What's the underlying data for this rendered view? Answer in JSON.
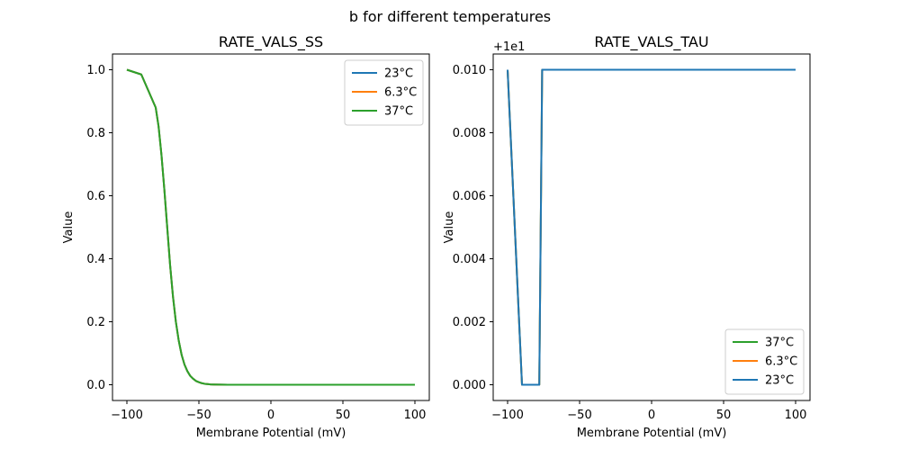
{
  "figure": {
    "suptitle": "b for different temperatures"
  },
  "colors": {
    "23°C": "#1f77b4",
    "6.3°C": "#ff7f0e",
    "37°C": "#2ca02c"
  },
  "chart_data": [
    {
      "type": "line",
      "title": "RATE_VALS_SS",
      "xlabel": "Membrane Potential (mV)",
      "ylabel": "Value",
      "xlim": [
        -110,
        110
      ],
      "ylim": [
        -0.05,
        1.05
      ],
      "xticks": [
        -100,
        -50,
        0,
        50,
        100
      ],
      "xtick_labels": [
        "−100",
        "−50",
        "0",
        "50",
        "100"
      ],
      "yticks": [
        0.0,
        0.2,
        0.4,
        0.6,
        0.8,
        1.0
      ],
      "ytick_labels": [
        "0.0",
        "0.2",
        "0.4",
        "0.6",
        "0.8",
        "1.0"
      ],
      "offset_label": "",
      "legend_position": "upper right",
      "legend": [
        "23°C",
        "6.3°C",
        "37°C"
      ],
      "x": [
        -100,
        -90,
        -80,
        -78,
        -76,
        -74,
        -72,
        -70,
        -68,
        -66,
        -64,
        -62,
        -60,
        -58,
        -56,
        -54,
        -52,
        -50,
        -48,
        -46,
        -44,
        -42,
        -40,
        -35,
        -30,
        -20,
        0,
        50,
        100
      ],
      "series": [
        {
          "name": "23°C",
          "values": [
            1.0,
            0.985,
            0.88,
            0.82,
            0.73,
            0.62,
            0.5,
            0.38,
            0.28,
            0.2,
            0.14,
            0.095,
            0.064,
            0.043,
            0.028,
            0.019,
            0.012,
            0.008,
            0.005,
            0.003,
            0.002,
            0.0012,
            0.0008,
            0.0002,
            0.0,
            0.0,
            0.0,
            0.0,
            0.0
          ]
        },
        {
          "name": "6.3°C",
          "values": [
            1.0,
            0.985,
            0.88,
            0.82,
            0.73,
            0.62,
            0.5,
            0.38,
            0.28,
            0.2,
            0.14,
            0.095,
            0.064,
            0.043,
            0.028,
            0.019,
            0.012,
            0.008,
            0.005,
            0.003,
            0.002,
            0.0012,
            0.0008,
            0.0002,
            0.0,
            0.0,
            0.0,
            0.0,
            0.0
          ]
        },
        {
          "name": "37°C",
          "values": [
            1.0,
            0.985,
            0.88,
            0.82,
            0.73,
            0.62,
            0.5,
            0.38,
            0.28,
            0.2,
            0.14,
            0.095,
            0.064,
            0.043,
            0.028,
            0.019,
            0.012,
            0.008,
            0.005,
            0.003,
            0.002,
            0.0012,
            0.0008,
            0.0002,
            0.0,
            0.0,
            0.0,
            0.0,
            0.0
          ]
        }
      ]
    },
    {
      "type": "line",
      "title": "RATE_VALS_TAU",
      "xlabel": "Membrane Potential (mV)",
      "ylabel": "Value",
      "xlim": [
        -110,
        110
      ],
      "ylim": [
        -0.0005,
        0.0105
      ],
      "xticks": [
        -100,
        -50,
        0,
        50,
        100
      ],
      "xtick_labels": [
        "−100",
        "−50",
        "0",
        "50",
        "100"
      ],
      "yticks": [
        0.0,
        0.002,
        0.004,
        0.006,
        0.008,
        0.01
      ],
      "ytick_labels": [
        "0.000",
        "0.002",
        "0.004",
        "0.006",
        "0.008",
        "0.010"
      ],
      "offset_label": "+1e1",
      "legend_position": "lower right",
      "legend": [
        "37°C",
        "6.3°C",
        "23°C"
      ],
      "x": [
        -100,
        -90,
        -78,
        -76,
        100
      ],
      "series": [
        {
          "name": "37°C",
          "values": [
            0.01,
            0.0,
            0.0,
            0.01,
            0.01
          ]
        },
        {
          "name": "6.3°C",
          "values": [
            0.01,
            0.0,
            0.0,
            0.01,
            0.01
          ]
        },
        {
          "name": "23°C",
          "values": [
            0.01,
            0.0,
            0.0,
            0.01,
            0.01
          ]
        }
      ]
    }
  ]
}
